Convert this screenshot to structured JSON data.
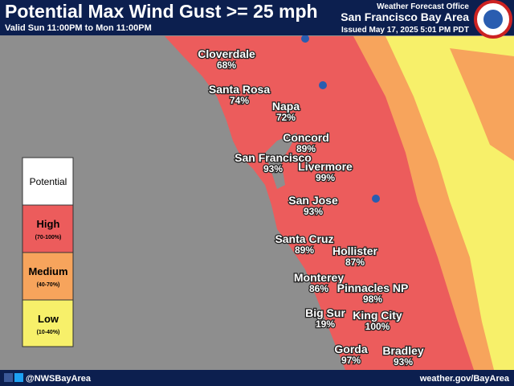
{
  "header": {
    "title": "Potential Max Wind Gust >= 25 mph",
    "valid": "Valid Sun 11:00PM to Mon 11:00PM",
    "office": "Weather Forecast Office",
    "area": "San Francisco Bay Area",
    "issued": "Issued May 17, 2025 5:01 PM PDT"
  },
  "legend": {
    "title": "Potential",
    "levels": [
      {
        "name": "High",
        "range": "(70-100%)"
      },
      {
        "name": "Medium",
        "range": "(40-70%)"
      },
      {
        "name": "Low",
        "range": "(10-40%)"
      }
    ]
  },
  "places": [
    {
      "name": "Cloverdale",
      "pct": "68%"
    },
    {
      "name": "Santa Rosa",
      "pct": "74%"
    },
    {
      "name": "Napa",
      "pct": "72%"
    },
    {
      "name": "Concord",
      "pct": "89%"
    },
    {
      "name": "San Francisco",
      "pct": "93%"
    },
    {
      "name": "Livermore",
      "pct": "99%"
    },
    {
      "name": "San Jose",
      "pct": "93%"
    },
    {
      "name": "Santa Cruz",
      "pct": "89%"
    },
    {
      "name": "Hollister",
      "pct": "87%"
    },
    {
      "name": "Monterey",
      "pct": "86%"
    },
    {
      "name": "Pinnacles NP",
      "pct": "98%"
    },
    {
      "name": "Big Sur",
      "pct": "19%"
    },
    {
      "name": "King City",
      "pct": "100%"
    },
    {
      "name": "Gorda",
      "pct": "97%"
    },
    {
      "name": "Bradley",
      "pct": "93%"
    }
  ],
  "footer": {
    "social": "@NWSBayArea",
    "url": "weather.gov/BayArea"
  }
}
